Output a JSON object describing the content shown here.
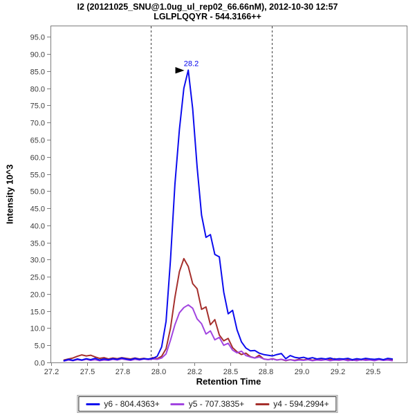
{
  "chart_data": {
    "type": "line",
    "title": "I2 (20121025_SNU@1.0ug_ul_rep02_66.66nM), 2012-10-30 12:57",
    "subtitle": "LGLPLQQYR - 544.3166++",
    "xlabel": "Retention Time",
    "ylabel": "Intensity 10^3",
    "xlim": [
      27.245,
      29.735
    ],
    "ylim": [
      0,
      98.3
    ],
    "grid": false,
    "legend_position": "bottom",
    "x_ticks": {
      "values": [
        27.25,
        27.5,
        27.75,
        28.0,
        28.25,
        28.5,
        28.75,
        29.0,
        29.25,
        29.5
      ],
      "labels": [
        "27.2",
        "27.5",
        "27.8",
        "28.0",
        "28.2",
        "28.5",
        "28.8",
        "29.0",
        "29.2",
        "29.5"
      ]
    },
    "y_ticks": {
      "values": [
        0,
        5,
        10,
        15,
        20,
        25,
        30,
        35,
        40,
        45,
        50,
        55,
        60,
        65,
        70,
        75,
        80,
        85,
        90,
        95
      ],
      "labels": [
        "0.0",
        "5.0",
        "10.0",
        "15.0",
        "20.0",
        "25.0",
        "30.0",
        "35.0",
        "40.0",
        "45.0",
        "50.0",
        "55.0",
        "60.0",
        "65.0",
        "70.0",
        "75.0",
        "80.0",
        "85.0",
        "90.0",
        "95.0"
      ]
    },
    "integration_boundaries": [
      27.945,
      28.79
    ],
    "annotation": {
      "text": "28.2",
      "x": 28.2,
      "y": 85.3,
      "color": "#0000ee"
    },
    "x": [
      27.34,
      27.371,
      27.402,
      27.433,
      27.464,
      27.495,
      27.526,
      27.557,
      27.588,
      27.619,
      27.65,
      27.681,
      27.712,
      27.743,
      27.774,
      27.805,
      27.836,
      27.867,
      27.898,
      27.929,
      27.96,
      27.991,
      28.022,
      28.053,
      28.084,
      28.115,
      28.146,
      28.177,
      28.208,
      28.239,
      28.27,
      28.301,
      28.332,
      28.363,
      28.394,
      28.425,
      28.456,
      28.487,
      28.518,
      28.549,
      28.58,
      28.611,
      28.642,
      28.673,
      28.704,
      28.735,
      28.766,
      28.797,
      28.828,
      28.859,
      28.89,
      28.921,
      28.952,
      28.983,
      29.014,
      29.045,
      29.076,
      29.107,
      29.138,
      29.169,
      29.2,
      29.231,
      29.262,
      29.293,
      29.324,
      29.355,
      29.386,
      29.417,
      29.448,
      29.479,
      29.51,
      29.541,
      29.572,
      29.603,
      29.634
    ],
    "series": [
      {
        "id": "y6",
        "name": "y6 - 804.4363+",
        "color": "#0b0bee",
        "values": [
          0.5,
          0.9,
          0.6,
          1.0,
          0.7,
          1.1,
          0.8,
          1.2,
          0.7,
          1.0,
          0.8,
          1.1,
          0.9,
          1.3,
          1.0,
          0.8,
          1.2,
          0.9,
          1.1,
          1.0,
          1.2,
          1.8,
          4.5,
          12.0,
          30.0,
          52.0,
          68.0,
          80.0,
          85.3,
          74.0,
          57.0,
          43.0,
          36.5,
          37.3,
          31.5,
          30.8,
          20.5,
          14.2,
          15.2,
          9.5,
          6.0,
          4.2,
          3.4,
          3.5,
          2.7,
          2.3,
          2.1,
          1.9,
          2.3,
          2.6,
          1.1,
          2.0,
          1.5,
          1.3,
          1.5,
          1.1,
          1.4,
          1.0,
          1.2,
          1.0,
          1.3,
          0.9,
          1.1,
          1.0,
          1.2,
          0.8,
          1.1,
          0.9,
          1.2,
          1.0,
          0.9,
          1.1,
          0.8,
          1.2,
          1.0
        ]
      },
      {
        "id": "y5",
        "name": "y5 - 707.3835+",
        "color": "#a144e0",
        "values": [
          0.4,
          0.7,
          0.5,
          0.8,
          0.6,
          0.9,
          0.6,
          0.8,
          0.5,
          0.7,
          0.6,
          0.9,
          0.7,
          1.0,
          0.8,
          0.6,
          0.9,
          0.7,
          1.0,
          0.8,
          1.0,
          0.9,
          1.3,
          2.5,
          6.5,
          11.0,
          14.5,
          16.0,
          16.8,
          15.8,
          12.7,
          11.3,
          8.3,
          9.2,
          6.6,
          7.3,
          5.0,
          5.6,
          3.6,
          2.8,
          3.3,
          2.0,
          1.6,
          1.3,
          1.6,
          1.0,
          0.8,
          1.0,
          0.7,
          0.9,
          0.6,
          0.8,
          0.5,
          0.7,
          0.6,
          0.8,
          0.5,
          0.7,
          0.6,
          0.8,
          0.5,
          0.7,
          0.6,
          0.8,
          0.5,
          0.7,
          0.5,
          0.8,
          0.6,
          0.7,
          0.5,
          0.8,
          0.6,
          0.7,
          0.5
        ]
      },
      {
        "id": "y4",
        "name": "y4 - 594.2994+",
        "color": "#a52f2c",
        "values": [
          0.7,
          1.0,
          1.3,
          1.8,
          2.2,
          1.9,
          2.1,
          1.6,
          1.2,
          1.4,
          1.0,
          1.3,
          1.1,
          1.4,
          1.2,
          1.0,
          1.3,
          1.0,
          1.2,
          0.9,
          1.4,
          1.1,
          1.8,
          4.0,
          10.0,
          19.0,
          26.5,
          30.3,
          28.0,
          23.0,
          21.5,
          15.5,
          16.2,
          11.0,
          12.5,
          8.0,
          6.3,
          7.0,
          4.3,
          3.1,
          2.3,
          2.7,
          1.7,
          1.3,
          2.1,
          1.0,
          0.8,
          1.1,
          0.7,
          0.9,
          0.5,
          0.8,
          0.6,
          0.9,
          0.7,
          1.0,
          0.6,
          0.9,
          0.7,
          1.0,
          0.8,
          1.1,
          0.7,
          1.0,
          0.8,
          0.6,
          0.9,
          0.7,
          1.0,
          0.8,
          0.6,
          0.9,
          0.7,
          1.0,
          0.8
        ]
      }
    ],
    "frame_color": "#7c7c7c",
    "boundary_line_color": "#3c3c3c"
  }
}
